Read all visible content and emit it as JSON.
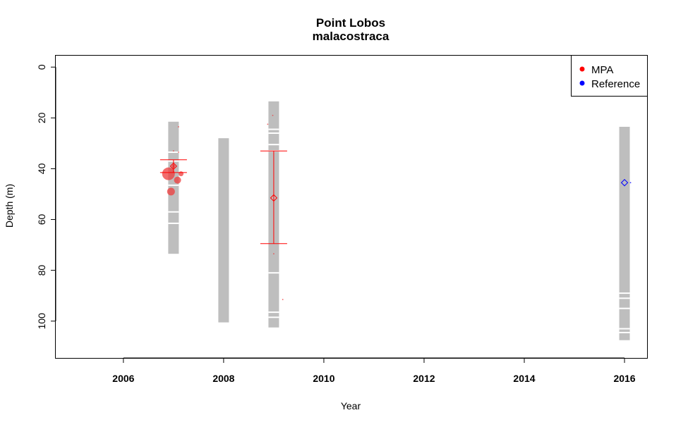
{
  "chart_data": {
    "type": "scatter",
    "title": "Point Lobos",
    "subtitle": "malacostraca",
    "xlabel": "Year",
    "ylabel": "Depth (m)",
    "xlim": [
      2004.65,
      2016.45
    ],
    "ylim": [
      -4.5,
      114.5
    ],
    "y_inverted": true,
    "xticks": [
      2006,
      2008,
      2010,
      2012,
      2014,
      2016
    ],
    "yticks": [
      0,
      20,
      40,
      60,
      80,
      100
    ],
    "grid": false,
    "legend_position": "top-right",
    "legend": [
      {
        "label": "MPA",
        "color": "#ff0000"
      },
      {
        "label": "Reference",
        "color": "#0000ff"
      }
    ],
    "sampling_bars": [
      {
        "year": 2007.0,
        "top": 21.5,
        "bottom": 73.5,
        "breaks": [
          33.5,
          37.0,
          46.5,
          57.0,
          61.5
        ]
      },
      {
        "year": 2008.0,
        "top": 28.0,
        "bottom": 100.5,
        "breaks": []
      },
      {
        "year": 2009.0,
        "top": 13.5,
        "bottom": 102.5,
        "breaks": [
          24.5,
          26.0,
          30.5,
          33.0,
          81.0,
          96.5,
          98.5
        ]
      },
      {
        "year": 2016.0,
        "top": 23.5,
        "bottom": 107.5,
        "breaks": [
          89.0,
          91.0,
          95.0,
          103.0,
          104.5
        ]
      }
    ],
    "series": [
      {
        "name": "MPA",
        "color": "#ff0000",
        "points": [
          {
            "x": 2006.9,
            "y": 42.0,
            "size": 9
          },
          {
            "x": 2006.95,
            "y": 49.0,
            "size": 5.5
          },
          {
            "x": 2007.08,
            "y": 44.5,
            "size": 5
          },
          {
            "x": 2007.15,
            "y": 42.0,
            "size": 3.5
          },
          {
            "x": 2007.0,
            "y": 39.0,
            "size": 2.5
          },
          {
            "x": 2007.0,
            "y": 33.0,
            "size": 0.9
          },
          {
            "x": 2007.1,
            "y": 23.5,
            "size": 0.9
          },
          {
            "x": 2007.1,
            "y": 33.5,
            "size": 0.9
          },
          {
            "x": 2008.88,
            "y": 22.5,
            "size": 0.9
          },
          {
            "x": 2008.98,
            "y": 19.0,
            "size": 0.9
          },
          {
            "x": 2009.0,
            "y": 73.5,
            "size": 0.9
          },
          {
            "x": 2009.18,
            "y": 91.5,
            "size": 0.9
          }
        ],
        "mean_markers": [
          {
            "x": 2007.0,
            "y": 39.0,
            "lower": 36.5,
            "upper": 41.5
          },
          {
            "x": 2009.0,
            "y": 51.5,
            "lower": 33.0,
            "upper": 69.5
          }
        ]
      },
      {
        "name": "Reference",
        "color": "#0000ff",
        "points": [
          {
            "x": 2016.12,
            "y": 45.5,
            "size": 0.9
          }
        ],
        "mean_markers": [
          {
            "x": 2016.0,
            "y": 45.5,
            "lower": null,
            "upper": null
          }
        ]
      }
    ]
  }
}
